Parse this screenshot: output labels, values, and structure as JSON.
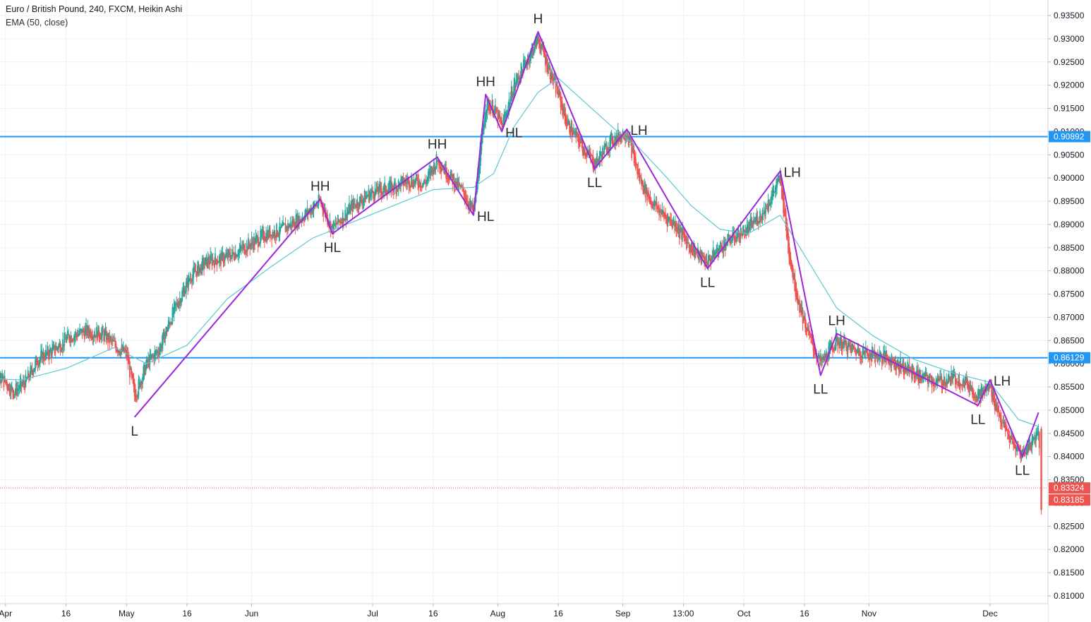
{
  "header": {
    "symbol_line": "Euro / British Pound, 240, FXCM, Heikin Ashi",
    "indicator_line": "EMA (50, close)"
  },
  "colors": {
    "up_candle": "#26a69a",
    "down_candle": "#ef5350",
    "ema_line": "#5cc8d1",
    "swing_line": "#9c27d8",
    "horizontal_line": "#2196f3",
    "price_line": "#ef5350",
    "grid": "#eef0f3"
  },
  "chart_data": {
    "type": "candlestick",
    "title": "Euro / British Pound, 240, FXCM, Heikin Ashi",
    "indicator": "EMA (50, close)",
    "y_axis": {
      "position": "right",
      "range": [
        0.806,
        0.936
      ],
      "ticks": [
        "0.93500",
        "0.93000",
        "0.92500",
        "0.92000",
        "0.91500",
        "0.91000",
        "0.90500",
        "0.90000",
        "0.89500",
        "0.89000",
        "0.88500",
        "0.88000",
        "0.87500",
        "0.87000",
        "0.86500",
        "0.86000",
        "0.85500",
        "0.85000",
        "0.84500",
        "0.84000",
        "0.83500",
        "0.83000",
        "0.82500",
        "0.82000",
        "0.81500",
        "0.81000"
      ]
    },
    "x_axis": {
      "range": [
        "Mar 24",
        "Dec 15"
      ],
      "ticks": [
        {
          "label": "Apr",
          "date": "Apr 1"
        },
        {
          "label": "16",
          "date": "Apr 16"
        },
        {
          "label": "May",
          "date": "May 1"
        },
        {
          "label": "16",
          "date": "May 16"
        },
        {
          "label": "Jun",
          "date": "Jun 1"
        },
        {
          "label": "Jul",
          "date": "Jul 1"
        },
        {
          "label": "16",
          "date": "Jul 16"
        },
        {
          "label": "Aug",
          "date": "Aug 1"
        },
        {
          "label": "16",
          "date": "Aug 16"
        },
        {
          "label": "Sep",
          "date": "Sep 1"
        },
        {
          "label": "13:00",
          "date": "Sep 16"
        },
        {
          "label": "Oct",
          "date": "Oct 1"
        },
        {
          "label": "16",
          "date": "Oct 16"
        },
        {
          "label": "Nov",
          "date": "Nov 1"
        },
        {
          "label": "Dec",
          "date": "Dec 1"
        }
      ]
    },
    "horizontal_lines": [
      {
        "value": 0.90892,
        "label": "0.90892"
      },
      {
        "value": 0.86129,
        "label": "0.86129"
      }
    ],
    "price_line": {
      "value": 0.83324,
      "labels": [
        "0.83324",
        "0.83185"
      ]
    },
    "swing_points": [
      {
        "date": "May 3",
        "value": 0.8485,
        "label": "L",
        "pos": "below"
      },
      {
        "date": "Jun 18",
        "value": 0.8955,
        "label": "HH",
        "pos": "above"
      },
      {
        "date": "Jun 21",
        "value": 0.888,
        "label": "HL",
        "pos": "below"
      },
      {
        "date": "Jul 17",
        "value": 0.9045,
        "label": "HH",
        "pos": "above"
      },
      {
        "date": "Jul 26",
        "value": 0.892,
        "label": "HL",
        "pos": "right"
      },
      {
        "date": "Jul 29",
        "value": 0.918,
        "label": "HH",
        "pos": "above"
      },
      {
        "date": "Aug 2",
        "value": 0.91,
        "label": "HL",
        "pos": "right"
      },
      {
        "date": "Aug 11",
        "value": 0.9315,
        "label": "H",
        "pos": "above"
      },
      {
        "date": "Aug 25",
        "value": 0.902,
        "label": "LL",
        "pos": "below"
      },
      {
        "date": "Sep 2",
        "value": 0.9105,
        "label": "LH",
        "pos": "right"
      },
      {
        "date": "Sep 22",
        "value": 0.8805,
        "label": "LL",
        "pos": "below"
      },
      {
        "date": "Oct 10",
        "value": 0.9015,
        "label": "LH",
        "pos": "right"
      },
      {
        "date": "Oct 20",
        "value": 0.8575,
        "label": "LL",
        "pos": "below"
      },
      {
        "date": "Oct 24",
        "value": 0.8665,
        "label": "LH",
        "pos": "above"
      },
      {
        "date": "Nov 28",
        "value": 0.851,
        "label": "LL",
        "pos": "below"
      },
      {
        "date": "Dec 1",
        "value": 0.8565,
        "label": "LH",
        "pos": "right"
      },
      {
        "date": "Dec 9",
        "value": 0.84,
        "label": "LL",
        "pos": "below"
      },
      {
        "date": "Dec 13",
        "value": 0.8495,
        "label": "",
        "pos": "none"
      }
    ],
    "price_path": [
      [
        "Mar 24",
        0.856
      ],
      [
        "Mar 26",
        0.858
      ],
      [
        "Mar 28",
        0.852
      ],
      [
        "Mar 31",
        0.857
      ],
      [
        "Apr 3",
        0.854
      ],
      [
        "Apr 6",
        0.856
      ],
      [
        "Apr 9",
        0.861
      ],
      [
        "Apr 13",
        0.863
      ],
      [
        "Apr 17",
        0.866
      ],
      [
        "Apr 21",
        0.867
      ],
      [
        "Apr 25",
        0.8665
      ],
      [
        "Apr 28",
        0.864
      ],
      [
        "May 1",
        0.862
      ],
      [
        "May 3",
        0.853
      ],
      [
        "May 6",
        0.86
      ],
      [
        "May 9",
        0.863
      ],
      [
        "May 13",
        0.872
      ],
      [
        "May 17",
        0.879
      ],
      [
        "May 21",
        0.882
      ],
      [
        "May 26",
        0.883
      ],
      [
        "Jun 1",
        0.886
      ],
      [
        "Jun 5",
        0.888
      ],
      [
        "Jun 9",
        0.889
      ],
      [
        "Jun 14",
        0.892
      ],
      [
        "Jun 18",
        0.895
      ],
      [
        "Jun 21",
        0.889
      ],
      [
        "Jun 26",
        0.894
      ],
      [
        "Jul 1",
        0.897
      ],
      [
        "Jul 6",
        0.898
      ],
      [
        "Jul 10",
        0.8995
      ],
      [
        "Jul 14",
        0.899
      ],
      [
        "Jul 17",
        0.904
      ],
      [
        "Jul 21",
        0.8995
      ],
      [
        "Jul 24",
        0.896
      ],
      [
        "Jul 26",
        0.8925
      ],
      [
        "Jul 29",
        0.916
      ],
      [
        "Jul 31",
        0.915
      ],
      [
        "Aug 2",
        0.911
      ],
      [
        "Aug 5",
        0.92
      ],
      [
        "Aug 8",
        0.925
      ],
      [
        "Aug 11",
        0.93
      ],
      [
        "Aug 13",
        0.925
      ],
      [
        "Aug 16",
        0.918
      ],
      [
        "Aug 18",
        0.912
      ],
      [
        "Aug 21",
        0.908
      ],
      [
        "Aug 25",
        0.903
      ],
      [
        "Aug 29",
        0.908
      ],
      [
        "Sep 2",
        0.91
      ],
      [
        "Sep 5",
        0.9
      ],
      [
        "Sep 8",
        0.895
      ],
      [
        "Sep 11",
        0.892
      ],
      [
        "Sep 14",
        0.89
      ],
      [
        "Sep 17",
        0.886
      ],
      [
        "Sep 20",
        0.883
      ],
      [
        "Sep 22",
        0.882
      ],
      [
        "Sep 25",
        0.885
      ],
      [
        "Sep 28",
        0.887
      ],
      [
        "Oct 2",
        0.889
      ],
      [
        "Oct 6",
        0.893
      ],
      [
        "Oct 10",
        0.9
      ],
      [
        "Oct 12",
        0.885
      ],
      [
        "Oct 14",
        0.875
      ],
      [
        "Oct 17",
        0.866
      ],
      [
        "Oct 20",
        0.86
      ],
      [
        "Oct 24",
        0.865
      ],
      [
        "Oct 28",
        0.863
      ],
      [
        "Nov 2",
        0.862
      ],
      [
        "Nov 6",
        0.861
      ],
      [
        "Nov 10",
        0.859
      ],
      [
        "Nov 14",
        0.857
      ],
      [
        "Nov 18",
        0.856
      ],
      [
        "Nov 22",
        0.857
      ],
      [
        "Nov 25",
        0.856
      ],
      [
        "Nov 28",
        0.853
      ],
      [
        "Dec 1",
        0.855
      ],
      [
        "Dec 4",
        0.847
      ],
      [
        "Dec 7",
        0.842
      ],
      [
        "Dec 9",
        0.8405
      ],
      [
        "Dec 12",
        0.844
      ],
      [
        "Dec 13",
        0.846
      ],
      [
        "Dec 14",
        0.832
      ]
    ],
    "ema_path": [
      [
        "Mar 24",
        0.857
      ],
      [
        "Apr 5",
        0.8565
      ],
      [
        "Apr 16",
        0.859
      ],
      [
        "Apr 28",
        0.8635
      ],
      [
        "May 6",
        0.86
      ],
      [
        "May 16",
        0.864
      ],
      [
        "May 26",
        0.874
      ],
      [
        "Jun 6",
        0.881
      ],
      [
        "Jun 16",
        0.887
      ],
      [
        "Jun 26",
        0.8905
      ],
      [
        "Jul 6",
        0.894
      ],
      [
        "Jul 16",
        0.8975
      ],
      [
        "Jul 26",
        0.898
      ],
      [
        "Jul 31",
        0.901
      ],
      [
        "Aug 5",
        0.911
      ],
      [
        "Aug 11",
        0.9185
      ],
      [
        "Aug 16",
        0.9215
      ],
      [
        "Aug 23",
        0.916
      ],
      [
        "Aug 30",
        0.9105
      ],
      [
        "Sep 5",
        0.9065
      ],
      [
        "Sep 12",
        0.9
      ],
      [
        "Sep 18",
        0.894
      ],
      [
        "Sep 25",
        0.889
      ],
      [
        "Oct 2",
        0.888
      ],
      [
        "Oct 10",
        0.892
      ],
      [
        "Oct 17",
        0.882
      ],
      [
        "Oct 24",
        0.872
      ],
      [
        "Nov 2",
        0.866
      ],
      [
        "Nov 12",
        0.861
      ],
      [
        "Nov 22",
        0.858
      ],
      [
        "Dec 1",
        0.856
      ],
      [
        "Dec 8",
        0.848
      ],
      [
        "Dec 13",
        0.8465
      ]
    ]
  }
}
